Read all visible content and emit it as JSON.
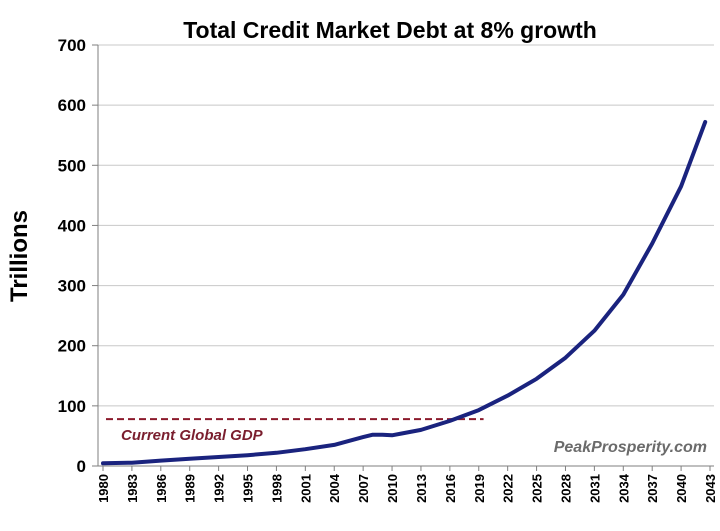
{
  "chart_data": {
    "type": "line",
    "title": "Total Credit Market Debt at 8% growth",
    "xlabel": "",
    "ylabel": "Trillions",
    "ylim": [
      0,
      700
    ],
    "yticks": [
      0,
      100,
      200,
      300,
      400,
      500,
      600,
      700
    ],
    "xlim": [
      1980,
      2043
    ],
    "xticks": [
      "1980",
      "1983",
      "1986",
      "1989",
      "1992",
      "1995",
      "1998",
      "2001",
      "2004",
      "2007",
      "2010",
      "2013",
      "2016",
      "2019",
      "2022",
      "2025",
      "2028",
      "2031",
      "2034",
      "2037",
      "2040",
      "2043"
    ],
    "grid": "horizontal",
    "series": [
      {
        "name": "Total Credit Market Debt",
        "color": "#1a237e",
        "x": [
          1980,
          1983,
          1986,
          1989,
          1992,
          1995,
          1998,
          2001,
          2004,
          2007,
          2008,
          2009,
          2010,
          2011,
          2013,
          2016,
          2019,
          2022,
          2025,
          2028,
          2031,
          2034,
          2037,
          2040,
          2042.5
        ],
        "y": [
          4.5,
          5.5,
          9,
          12,
          15,
          18,
          22,
          28,
          35,
          48,
          52,
          52,
          51,
          54,
          60,
          75,
          93,
          117,
          145,
          180,
          225,
          285,
          370,
          465,
          572
        ]
      }
    ],
    "reference_line": {
      "label": "Current Global GDP",
      "value": 78,
      "x_end": 2019.5,
      "color": "#8b1a2b"
    },
    "watermark": "PeakProsperity.com"
  }
}
